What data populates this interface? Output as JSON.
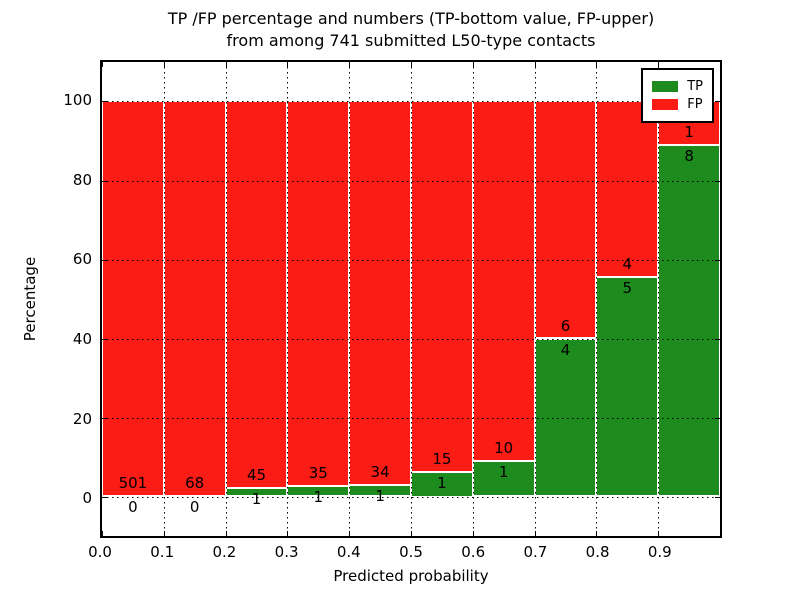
{
  "chart_data": {
    "type": "bar",
    "stacked": true,
    "orientation": "vertical",
    "title_line1": "TP /FP percentage and numbers (TP-bottom value, FP-upper)",
    "title_line2": "from among 741 submitted L50-type contacts",
    "xlabel": "Predicted probability",
    "ylabel": "Percentage",
    "total_contacts": 741,
    "bin_width": 0.1,
    "bin_starts": [
      0.0,
      0.1,
      0.2,
      0.3,
      0.4,
      0.5,
      0.6,
      0.7,
      0.8,
      0.9
    ],
    "xtick_labels": [
      "0.0",
      "0.1",
      "0.2",
      "0.3",
      "0.4",
      "0.5",
      "0.6",
      "0.7",
      "0.8",
      "0.9"
    ],
    "ytick_values": [
      0,
      20,
      40,
      60,
      80,
      100
    ],
    "xlim": [
      0.0,
      1.0
    ],
    "ylim": [
      -10,
      110
    ],
    "bars_normalized_to_percent": 100,
    "grid": {
      "style": "dotted",
      "color": "#000000",
      "over_bars": true
    },
    "series": [
      {
        "name": "TP",
        "color": "#1e8b1e",
        "counts": [
          0,
          0,
          1,
          1,
          1,
          1,
          1,
          4,
          5,
          8
        ]
      },
      {
        "name": "FP",
        "color": "#fa1c15",
        "counts": [
          501,
          68,
          45,
          35,
          34,
          15,
          10,
          6,
          4,
          1
        ]
      }
    ],
    "tp_percent_of_bin": [
      0,
      0,
      2.17,
      2.78,
      2.86,
      6.25,
      9.09,
      40.0,
      55.56,
      88.89
    ],
    "legend": {
      "position": "upper right",
      "entries": [
        {
          "label": "TP",
          "color": "#1e8b1e"
        },
        {
          "label": "FP",
          "color": "#fa1c15"
        }
      ]
    },
    "colors": {
      "tp_green": "#1e8b1e",
      "fp_red": "#fa1c15",
      "bar_edge": "#ffffff",
      "frame": "#000000",
      "background": "#ffffff"
    }
  }
}
